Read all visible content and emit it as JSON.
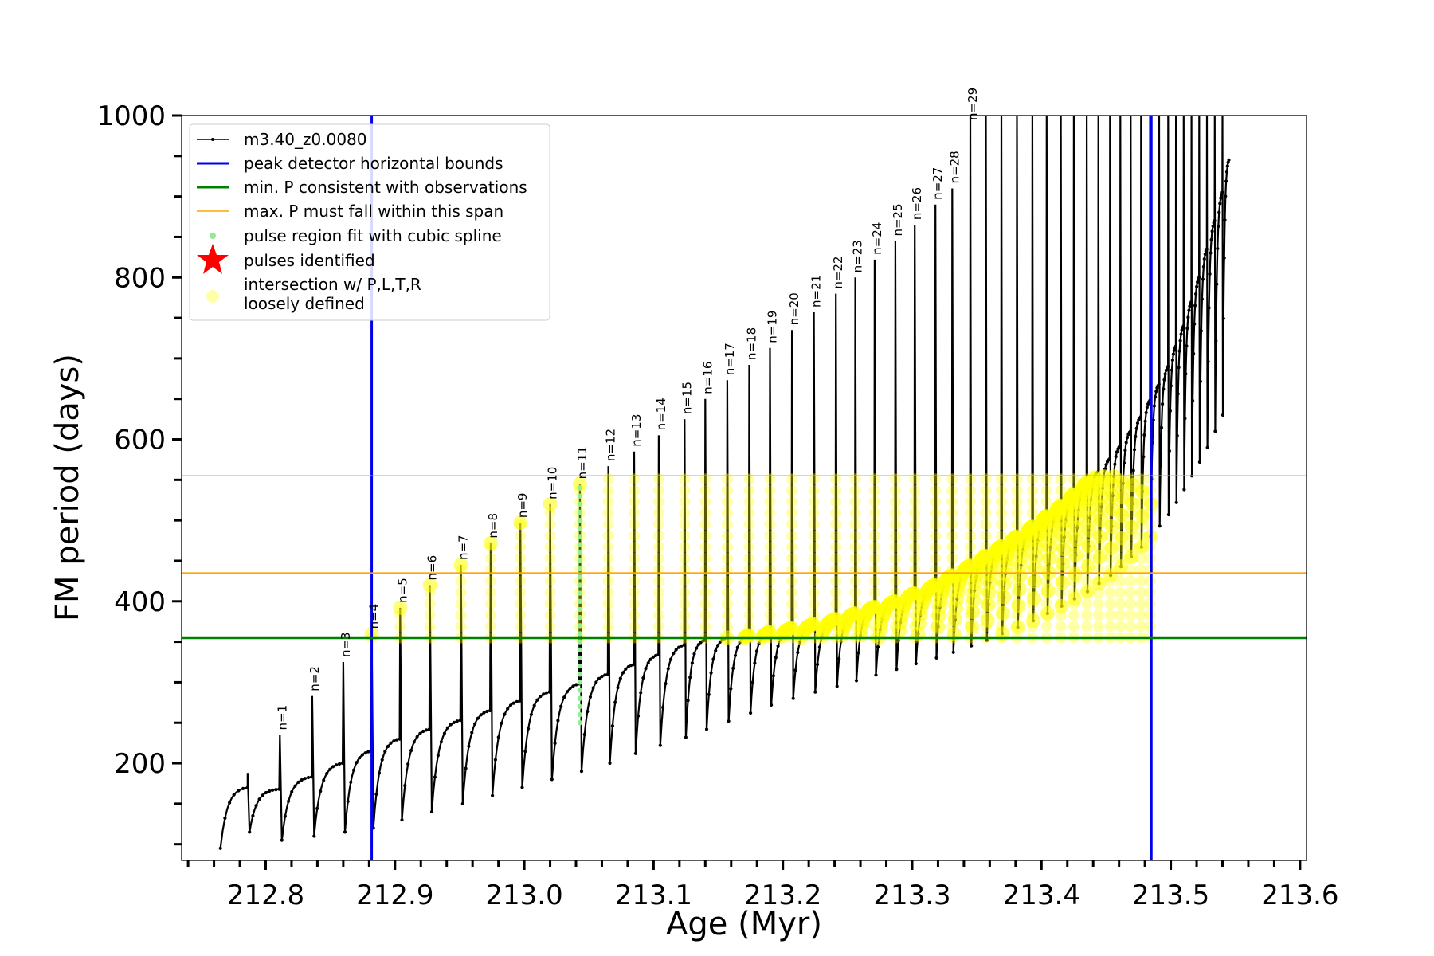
{
  "chart_data": {
    "type": "line",
    "xlabel": "Age (Myr)",
    "ylabel": "FM period (days)",
    "xlim": [
      212.735,
      213.605
    ],
    "ylim": [
      80,
      1000
    ],
    "x_ticks": [
      212.8,
      212.9,
      213.0,
      213.1,
      213.2,
      213.3,
      213.4,
      213.5,
      213.6
    ],
    "x_tick_labels": [
      "212.8",
      "212.9",
      "213.0",
      "213.1",
      "213.2",
      "213.3",
      "213.4",
      "213.5",
      "213.6"
    ],
    "y_ticks": [
      200,
      400,
      600,
      800,
      1000
    ],
    "y_tick_labels": [
      "200",
      "400",
      "600",
      "800",
      "1000"
    ],
    "grid": false,
    "legend_position": "upper-left",
    "series": [
      {
        "name": "m3.40_z0.0080",
        "kind": "line-with-markers",
        "color": "#000000",
        "start_age": 212.765,
        "end_age": 213.545,
        "pulses": [
          {
            "age": 212.786,
            "peak": 188,
            "plateau_start": 115,
            "plateau_end": 168
          },
          {
            "age": 212.811,
            "peak": 235,
            "plateau_start": 105,
            "plateau_end": 183
          },
          {
            "age": 212.836,
            "peak": 283,
            "plateau_start": 110,
            "plateau_end": 200
          },
          {
            "age": 212.86,
            "peak": 325,
            "plateau_start": 115,
            "plateau_end": 215
          },
          {
            "age": 212.882,
            "peak": 360,
            "plateau_start": 120,
            "plateau_end": 230
          },
          {
            "age": 212.904,
            "peak": 392,
            "plateau_start": 130,
            "plateau_end": 242
          },
          {
            "age": 212.927,
            "peak": 420,
            "plateau_start": 140,
            "plateau_end": 253
          },
          {
            "age": 212.951,
            "peak": 445,
            "plateau_start": 150,
            "plateau_end": 265
          },
          {
            "age": 212.974,
            "peak": 472,
            "plateau_start": 160,
            "plateau_end": 277
          },
          {
            "age": 212.997,
            "peak": 497,
            "plateau_start": 170,
            "plateau_end": 288
          },
          {
            "age": 213.02,
            "peak": 520,
            "plateau_start": 180,
            "plateau_end": 298
          },
          {
            "age": 213.043,
            "peak": 545,
            "plateau_start": 190,
            "plateau_end": 310
          },
          {
            "age": 213.065,
            "peak": 567,
            "plateau_start": 200,
            "plateau_end": 322
          },
          {
            "age": 213.085,
            "peak": 585,
            "plateau_start": 212,
            "plateau_end": 334
          },
          {
            "age": 213.104,
            "peak": 605,
            "plateau_start": 222,
            "plateau_end": 346
          },
          {
            "age": 213.124,
            "peak": 625,
            "plateau_start": 232,
            "plateau_end": 352
          },
          {
            "age": 213.14,
            "peak": 650,
            "plateau_start": 242,
            "plateau_end": 355
          },
          {
            "age": 213.157,
            "peak": 673,
            "plateau_start": 252,
            "plateau_end": 358
          },
          {
            "age": 213.174,
            "peak": 692,
            "plateau_start": 262,
            "plateau_end": 362
          },
          {
            "age": 213.19,
            "peak": 713,
            "plateau_start": 272,
            "plateau_end": 367
          },
          {
            "age": 213.207,
            "peak": 735,
            "plateau_start": 280,
            "plateau_end": 372
          },
          {
            "age": 213.224,
            "peak": 757,
            "plateau_start": 288,
            "plateau_end": 378
          },
          {
            "age": 213.241,
            "peak": 780,
            "plateau_start": 295,
            "plateau_end": 385
          },
          {
            "age": 213.256,
            "peak": 800,
            "plateau_start": 302,
            "plateau_end": 393
          },
          {
            "age": 213.271,
            "peak": 822,
            "plateau_start": 309,
            "plateau_end": 400
          },
          {
            "age": 213.287,
            "peak": 845,
            "plateau_start": 316,
            "plateau_end": 410
          },
          {
            "age": 213.302,
            "peak": 865,
            "plateau_start": 323,
            "plateau_end": 420
          },
          {
            "age": 213.318,
            "peak": 890,
            "plateau_start": 330,
            "plateau_end": 432
          },
          {
            "age": 213.331,
            "peak": 910,
            "plateau_start": 337,
            "plateau_end": 444
          },
          {
            "age": 213.345,
            "peak": 1000,
            "plateau_start": 345,
            "plateau_end": 456
          },
          {
            "age": 213.357,
            "peak": 1000,
            "plateau_start": 352,
            "plateau_end": 468
          },
          {
            "age": 213.369,
            "peak": 1000,
            "plateau_start": 360,
            "plateau_end": 480
          },
          {
            "age": 213.381,
            "peak": 1000,
            "plateau_start": 368,
            "plateau_end": 492
          },
          {
            "age": 213.393,
            "peak": 1000,
            "plateau_start": 376,
            "plateau_end": 505
          },
          {
            "age": 213.404,
            "peak": 1000,
            "plateau_start": 385,
            "plateau_end": 518
          },
          {
            "age": 213.415,
            "peak": 1000,
            "plateau_start": 394,
            "plateau_end": 532
          },
          {
            "age": 213.425,
            "peak": 1000,
            "plateau_start": 403,
            "plateau_end": 546
          },
          {
            "age": 213.435,
            "peak": 1000,
            "plateau_start": 412,
            "plateau_end": 560
          },
          {
            "age": 213.444,
            "peak": 1000,
            "plateau_start": 422,
            "plateau_end": 576
          },
          {
            "age": 213.453,
            "peak": 1000,
            "plateau_start": 432,
            "plateau_end": 592
          },
          {
            "age": 213.461,
            "peak": 1000,
            "plateau_start": 443,
            "plateau_end": 610
          },
          {
            "age": 213.469,
            "peak": 1000,
            "plateau_start": 455,
            "plateau_end": 628
          },
          {
            "age": 213.477,
            "peak": 1000,
            "plateau_start": 467,
            "plateau_end": 648
          },
          {
            "age": 213.484,
            "peak": 1000,
            "plateau_start": 480,
            "plateau_end": 668
          },
          {
            "age": 213.491,
            "peak": 1000,
            "plateau_start": 493,
            "plateau_end": 690
          },
          {
            "age": 213.498,
            "peak": 1000,
            "plateau_start": 507,
            "plateau_end": 715
          },
          {
            "age": 213.504,
            "peak": 1000,
            "plateau_start": 522,
            "plateau_end": 740
          },
          {
            "age": 213.51,
            "peak": 1000,
            "plateau_start": 538,
            "plateau_end": 770
          },
          {
            "age": 213.516,
            "peak": 1000,
            "plateau_start": 555,
            "plateau_end": 800
          },
          {
            "age": 213.522,
            "peak": 1000,
            "plateau_start": 572,
            "plateau_end": 835
          },
          {
            "age": 213.528,
            "peak": 1000,
            "plateau_start": 590,
            "plateau_end": 870
          },
          {
            "age": 213.534,
            "peak": 1000,
            "plateau_start": 610,
            "plateau_end": 905
          },
          {
            "age": 213.54,
            "peak": 1000,
            "plateau_start": 630,
            "plateau_end": 945
          }
        ]
      },
      {
        "name": "peak detector horizontal bounds",
        "kind": "vline",
        "color": "#0000ee",
        "values": [
          212.882,
          213.485
        ]
      },
      {
        "name": "min. P consistent with observations",
        "kind": "hline",
        "color": "#008000",
        "values": [
          355
        ]
      },
      {
        "name": "max. P must fall within this span",
        "kind": "hline",
        "color": "#ffa500",
        "values": [
          435,
          555
        ]
      },
      {
        "name": "pulse region fit with cubic spline",
        "kind": "points",
        "color": "#90ee90",
        "age": 213.043,
        "range": [
          250,
          545
        ]
      },
      {
        "name": "pulses identified",
        "kind": "marker",
        "color": "#ff0000"
      },
      {
        "name": "intersection w/ P,L,T,R\nloosely defined",
        "kind": "points",
        "color": "#ffff00",
        "range": [
          355,
          555
        ]
      }
    ],
    "pulse_labels": [
      "n=1",
      "n=2",
      "n=3",
      "n=4",
      "n=5",
      "n=6",
      "n=7",
      "n=8",
      "n=9",
      "n=10",
      "n=11",
      "n=12",
      "n=13",
      "n=14",
      "n=15",
      "n=16",
      "n=17",
      "n=18",
      "n=19",
      "n=20",
      "n=21",
      "n=22",
      "n=23",
      "n=24",
      "n=25",
      "n=26",
      "n=27",
      "n=28",
      "n=29"
    ]
  },
  "legend": {
    "item1": "m3.40_z0.0080",
    "item2": "peak detector horizontal bounds",
    "item3": "min. P consistent with observations",
    "item4": "max. P must fall within this span",
    "item5": "pulse region fit with cubic spline",
    "item6": "pulses identified",
    "item7_line1": "intersection w/ P,L,T,R",
    "item7_line2": "loosely defined"
  }
}
